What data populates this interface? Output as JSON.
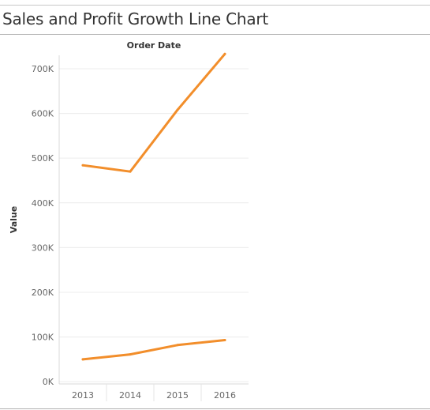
{
  "header": {
    "title": "Sales and Profit Growth Line Chart"
  },
  "chart_data": {
    "type": "line",
    "title": "Sales and Profit Growth Line Chart",
    "x_header": "Order Date",
    "ylabel": "Value",
    "categories": [
      "2013",
      "2014",
      "2015",
      "2016"
    ],
    "y_ticks": [
      0,
      100000,
      200000,
      300000,
      400000,
      500000,
      600000,
      700000
    ],
    "y_tick_labels": [
      "0K",
      "100K",
      "200K",
      "300K",
      "400K",
      "500K",
      "600K",
      "700K"
    ],
    "ylim": [
      -5000,
      730000
    ],
    "grid": "horizontal",
    "series": [
      {
        "values": [
          484000,
          470000,
          608000,
          733000
        ],
        "color": "#f28e2b"
      },
      {
        "values": [
          50000,
          61000,
          82000,
          93000
        ],
        "color": "#f28e2b"
      }
    ]
  }
}
